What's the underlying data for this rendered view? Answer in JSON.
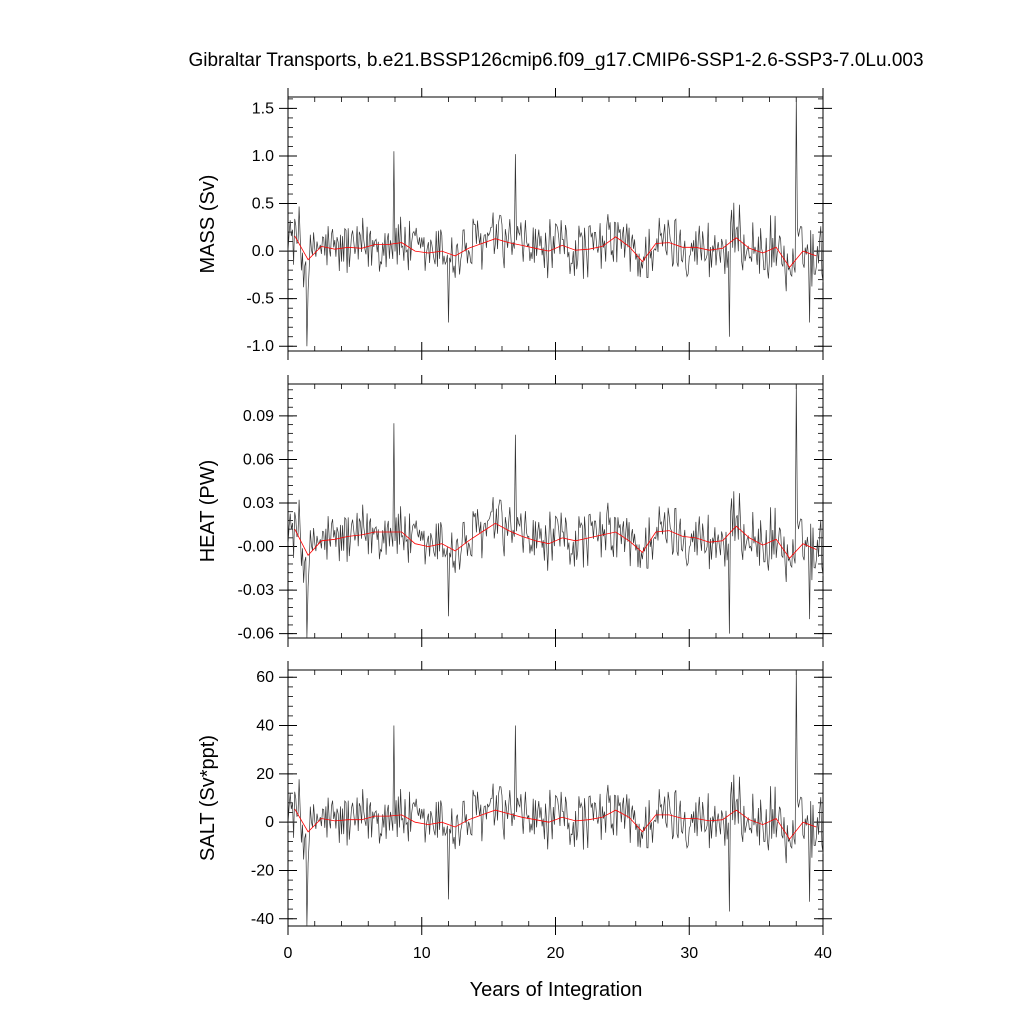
{
  "chart_data": {
    "type": "line",
    "title": "Gibraltar Transports, b.e21.BSSP126cmip6.f09_g17.CMIP6-SSP1-2.6-SSP3-7.0Lu.003",
    "xlabel": "Years of Integration",
    "xlim": [
      0,
      40
    ],
    "xticks": [
      "0",
      "10",
      "20",
      "30",
      "40"
    ],
    "line_colors": {
      "monthly": "#333333",
      "annual": "#ff0000"
    },
    "panels": [
      {
        "ylabel": "MASS (Sv)",
        "ylim": [
          -1.05,
          1.62
        ],
        "yticks": [
          -1.0,
          -0.5,
          0.0,
          0.5,
          1.0,
          1.5
        ],
        "ytick_labels": [
          "-1.0",
          "-0.5",
          "0.0",
          "0.5",
          "1.0",
          "1.5"
        ],
        "annual_mean": [
          0.16,
          -0.09,
          0.05,
          0.02,
          0.04,
          0.03,
          0.07,
          0.07,
          0.09,
          0.0,
          -0.02,
          0.0,
          -0.05,
          0.03,
          0.08,
          0.13,
          0.09,
          0.06,
          0.03,
          0.0,
          0.06,
          0.01,
          0.02,
          0.05,
          0.15,
          0.05,
          -0.11,
          0.08,
          0.09,
          0.04,
          0.04,
          0.01,
          0.03,
          0.14,
          0.03,
          -0.02,
          0.04,
          -0.17,
          0.0,
          -0.05
        ],
        "spikes": [
          [
            1.4,
            -1.0
          ],
          [
            7.9,
            1.05
          ],
          [
            12.0,
            -0.75
          ],
          [
            17.0,
            1.02
          ],
          [
            33.0,
            -0.9
          ],
          [
            38.0,
            1.62
          ],
          [
            39.0,
            -0.75
          ]
        ]
      },
      {
        "ylabel": "HEAT (PW)",
        "ylim": [
          -0.063,
          0.112
        ],
        "yticks": [
          -0.06,
          -0.03,
          0.0,
          0.03,
          0.06,
          0.09
        ],
        "ytick_labels": [
          "-0.06",
          "-0.03",
          "-0.00",
          "0.03",
          "0.06",
          "0.09"
        ],
        "annual_mean": [
          0.012,
          -0.006,
          0.004,
          0.005,
          0.007,
          0.008,
          0.01,
          0.01,
          0.01,
          0.002,
          0.0,
          0.002,
          -0.003,
          0.004,
          0.01,
          0.016,
          0.011,
          0.007,
          0.004,
          0.002,
          0.006,
          0.004,
          0.006,
          0.008,
          0.01,
          0.004,
          -0.004,
          0.01,
          0.011,
          0.007,
          0.006,
          0.003,
          0.004,
          0.014,
          0.006,
          0.001,
          0.005,
          -0.008,
          0.002,
          -0.002
        ],
        "spikes": [
          [
            1.4,
            -0.063
          ],
          [
            7.9,
            0.085
          ],
          [
            12.0,
            -0.048
          ],
          [
            17.0,
            0.077
          ],
          [
            33.0,
            -0.06
          ],
          [
            38.0,
            0.112
          ],
          [
            39.0,
            -0.05
          ]
        ]
      },
      {
        "ylabel": "SALT (Sv*ppt)",
        "ylim": [
          -43,
          63
        ],
        "yticks": [
          -40,
          -20,
          0,
          20,
          40,
          60
        ],
        "ytick_labels": [
          "-40",
          "-20",
          "0",
          "20",
          "40",
          "60"
        ],
        "annual_mean": [
          5.5,
          -4.0,
          1.5,
          0.5,
          1.0,
          1.0,
          2.5,
          2.5,
          3.0,
          0.0,
          -1.0,
          0.0,
          -2.0,
          1.0,
          3.0,
          5.0,
          3.5,
          2.0,
          1.0,
          0.0,
          2.0,
          0.5,
          1.0,
          2.0,
          5.0,
          2.0,
          -4.0,
          3.0,
          3.0,
          1.5,
          1.5,
          0.5,
          1.0,
          5.0,
          1.0,
          -1.0,
          1.5,
          -7.0,
          0.0,
          -2.0
        ],
        "spikes": [
          [
            1.4,
            -43
          ],
          [
            7.9,
            40
          ],
          [
            12.0,
            -32
          ],
          [
            17.0,
            40
          ],
          [
            33.0,
            -37
          ],
          [
            38.0,
            63
          ],
          [
            39.0,
            -33
          ]
        ]
      }
    ]
  }
}
